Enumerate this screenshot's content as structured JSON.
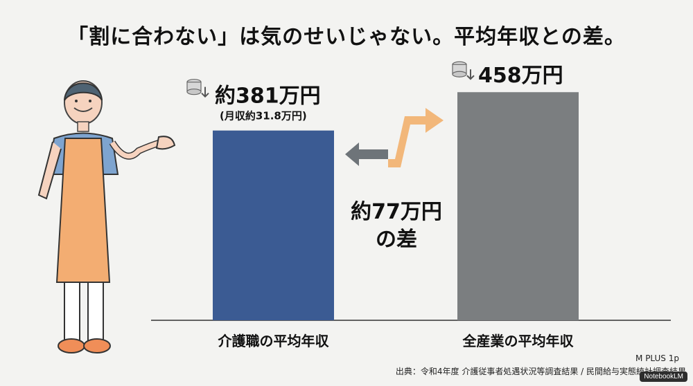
{
  "title": "「割に合わない」は気のせいじゃない。平均年収との差。",
  "chart_data": {
    "type": "bar",
    "categories": [
      "介護職の平均年収",
      "全産業の平均年収"
    ],
    "values": [
      381,
      458
    ],
    "unit": "万円",
    "value_labels": [
      "約381万円",
      "458万円"
    ],
    "sub_labels": [
      "(月収約31.8万円)",
      ""
    ],
    "colors": [
      "#3b5b93",
      "#7b7e80"
    ],
    "difference_label_line1": "約77万円",
    "difference_label_line2": "の差",
    "ylim": [
      0,
      500
    ]
  },
  "source": "出典：令和4年度 介護従事者処遇状況等調査結果 / 民間給与実態統計調査結果",
  "font_note": "M PLUS 1p",
  "watermark": "NotebookLM",
  "icons": [
    "coin-stack-icon",
    "double-arrow-icon",
    "caregiver-illustration"
  ]
}
